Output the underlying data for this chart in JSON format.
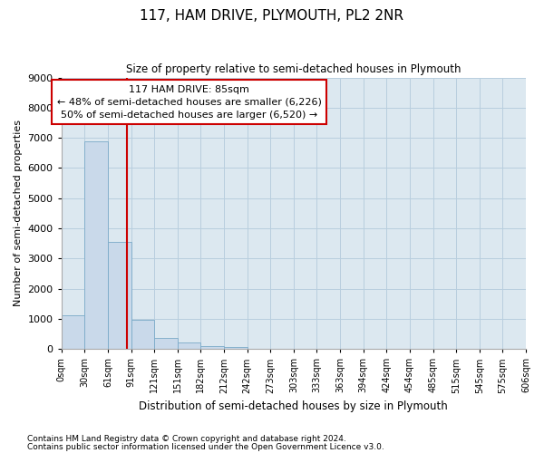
{
  "title": "117, HAM DRIVE, PLYMOUTH, PL2 2NR",
  "subtitle": "Size of property relative to semi-detached houses in Plymouth",
  "xlabel": "Distribution of semi-detached houses by size in Plymouth",
  "ylabel": "Number of semi-detached properties",
  "footnote1": "Contains HM Land Registry data © Crown copyright and database right 2024.",
  "footnote2": "Contains public sector information licensed under the Open Government Licence v3.0.",
  "annotation_title": "117 HAM DRIVE: 85sqm",
  "annotation_line1": "← 48% of semi-detached houses are smaller (6,226)",
  "annotation_line2": "50% of semi-detached houses are larger (6,520) →",
  "bar_color": "#c9d9ea",
  "bar_edge_color": "#7aaac8",
  "grid_color": "#b8cede",
  "bg_color": "#dce8f0",
  "vline_color": "#cc0000",
  "annotation_box_facecolor": "#ffffff",
  "annotation_box_edgecolor": "#cc0000",
  "bin_labels": [
    "0sqm",
    "30sqm",
    "61sqm",
    "91sqm",
    "121sqm",
    "151sqm",
    "182sqm",
    "212sqm",
    "242sqm",
    "273sqm",
    "303sqm",
    "333sqm",
    "363sqm",
    "394sqm",
    "424sqm",
    "454sqm",
    "485sqm",
    "515sqm",
    "545sqm",
    "575sqm",
    "606sqm"
  ],
  "bar_values": [
    1120,
    6880,
    3560,
    970,
    350,
    200,
    100,
    65,
    0,
    0,
    0,
    0,
    0,
    0,
    0,
    0,
    0,
    0,
    0,
    0
  ],
  "property_size_sqm": 85,
  "ylim": [
    0,
    9000
  ],
  "yticks": [
    0,
    1000,
    2000,
    3000,
    4000,
    5000,
    6000,
    7000,
    8000,
    9000
  ]
}
